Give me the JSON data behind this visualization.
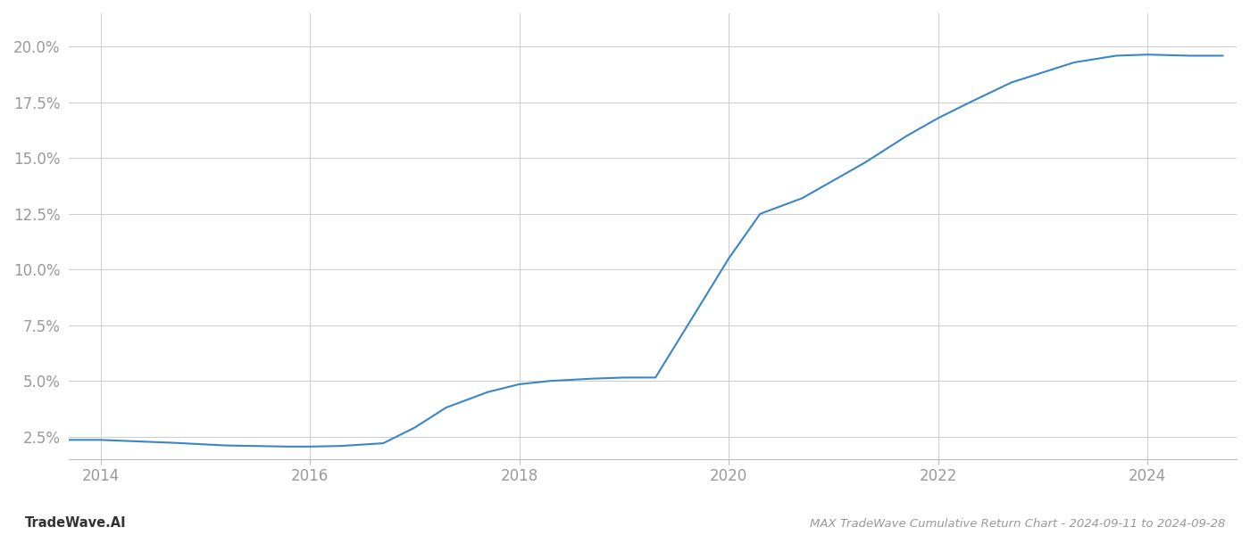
{
  "x_years": [
    2013.7,
    2014.0,
    2014.7,
    2015.2,
    2015.8,
    2016.0,
    2016.3,
    2016.7,
    2017.0,
    2017.3,
    2017.7,
    2018.0,
    2018.3,
    2018.7,
    2019.0,
    2019.3,
    2019.7,
    2020.0,
    2020.3,
    2020.7,
    2021.0,
    2021.3,
    2021.7,
    2022.0,
    2022.3,
    2022.7,
    2023.0,
    2023.3,
    2023.7,
    2024.0,
    2024.4,
    2024.72
  ],
  "y_values": [
    2.35,
    2.35,
    2.22,
    2.1,
    2.05,
    2.05,
    2.08,
    2.2,
    2.9,
    3.8,
    4.5,
    4.85,
    5.0,
    5.1,
    5.15,
    5.15,
    8.2,
    10.5,
    12.5,
    13.2,
    14.0,
    14.8,
    16.0,
    16.8,
    17.5,
    18.4,
    18.85,
    19.3,
    19.6,
    19.65,
    19.6,
    19.6
  ],
  "line_color": "#3a86c8",
  "line_width": 1.5,
  "background_color": "#ffffff",
  "grid_color": "#cccccc",
  "grid_linewidth": 0.7,
  "title": "MAX TradeWave Cumulative Return Chart - 2024-09-11 to 2024-09-28",
  "watermark": "TradeWave.AI",
  "yticks": [
    2.5,
    5.0,
    7.5,
    10.0,
    12.5,
    15.0,
    17.5,
    20.0
  ],
  "xticks": [
    2014,
    2016,
    2018,
    2020,
    2022,
    2024
  ],
  "xlim": [
    2013.7,
    2024.85
  ],
  "ylim": [
    1.5,
    21.5
  ],
  "title_fontsize": 9.5,
  "watermark_fontsize": 10.5,
  "tick_label_color": "#999999",
  "tick_label_fontsize": 12,
  "spine_color": "#bbbbbb"
}
